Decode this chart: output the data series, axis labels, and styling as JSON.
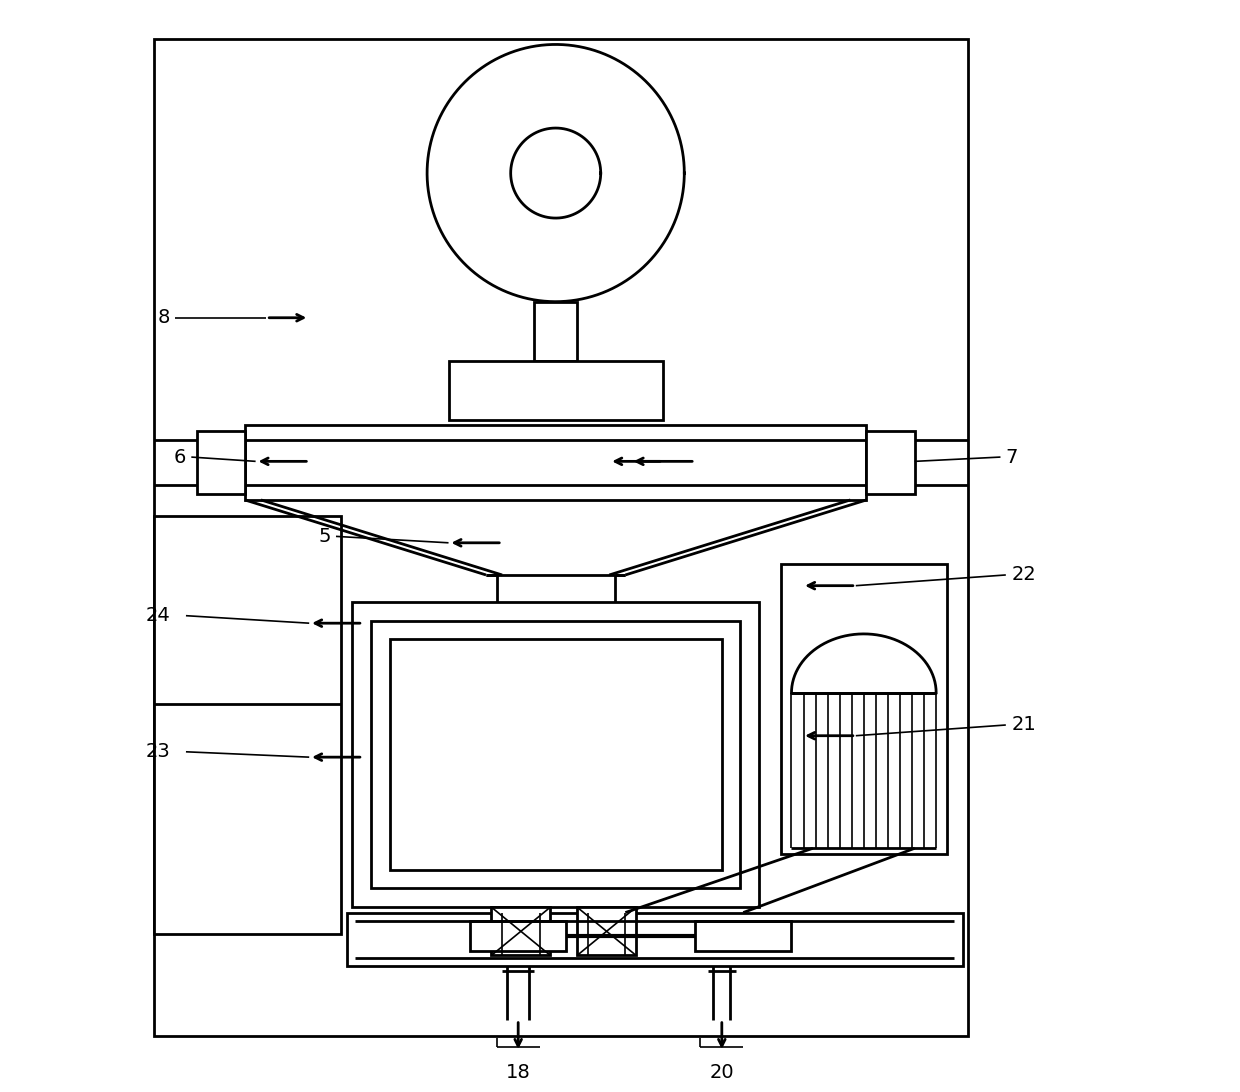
{
  "bg_color": "#ffffff",
  "line_color": "#000000",
  "lw": 2.0,
  "lw_thin": 1.2,
  "fig_width": 12.4,
  "fig_height": 10.92,
  "dpi": 100
}
